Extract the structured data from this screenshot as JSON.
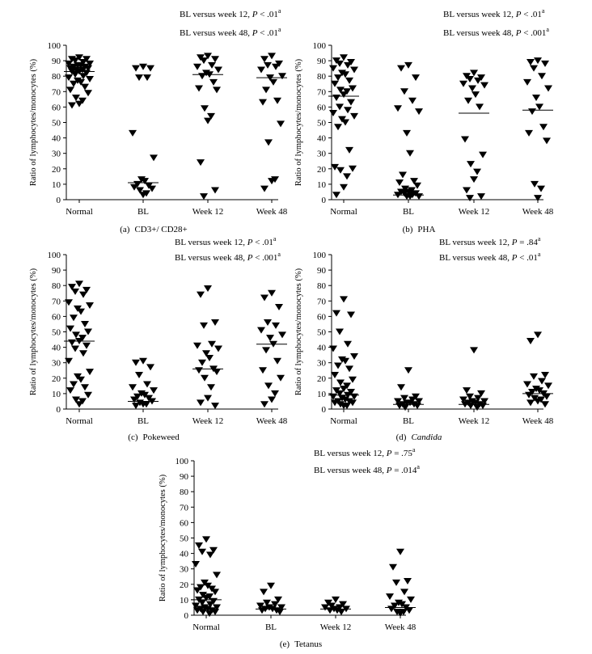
{
  "figure": {
    "y_axis_label": "Ratio of lymphocytes/monocytes (%)"
  },
  "chart_data": [
    {
      "type": "scatter",
      "caption_letter": "(a)",
      "caption_name": "CD3+/ CD28+",
      "categories": [
        "Normal",
        "BL",
        "Week 12",
        "Week 48"
      ],
      "ylim": [
        0,
        100
      ],
      "yticks": [
        0,
        10,
        20,
        30,
        40,
        50,
        60,
        70,
        80,
        90,
        100
      ],
      "annotations": [
        {
          "prefix": "BL versus week 12, ",
          "p": "P",
          "rest": " < .01",
          "sup": "a"
        },
        {
          "prefix": "BL versus week 48, ",
          "p": "P",
          "rest": " < .01",
          "sup": "a"
        }
      ],
      "series": [
        {
          "name": "Normal",
          "median": 83,
          "values": [
            92,
            91,
            91,
            90,
            89,
            88,
            88,
            87,
            87,
            86,
            86,
            85,
            85,
            84,
            84,
            83,
            83,
            82,
            81,
            80,
            79,
            78,
            77,
            76,
            75,
            73,
            71,
            69,
            66,
            64,
            62,
            61
          ]
        },
        {
          "name": "BL",
          "median": 11,
          "values": [
            86,
            85,
            85,
            79,
            79,
            43,
            27,
            13,
            12,
            10,
            9,
            8,
            7,
            6,
            4,
            3
          ]
        },
        {
          "name": "Week 12",
          "median": 81,
          "values": [
            93,
            92,
            91,
            90,
            87,
            86,
            84,
            82,
            81,
            80,
            76,
            72,
            71,
            59,
            54,
            51,
            24,
            6,
            2
          ]
        },
        {
          "name": "Week 48",
          "median": 79,
          "values": [
            93,
            91,
            88,
            87,
            86,
            84,
            80,
            79,
            76,
            71,
            64,
            63,
            49,
            37,
            13,
            12,
            7
          ]
        }
      ]
    },
    {
      "type": "scatter",
      "caption_letter": "(b)",
      "caption_name": "PHA",
      "categories": [
        "Normal",
        "BL",
        "Week 12",
        "Week 48"
      ],
      "ylim": [
        0,
        100
      ],
      "yticks": [
        0,
        10,
        20,
        30,
        40,
        50,
        60,
        70,
        80,
        90,
        100
      ],
      "annotations": [
        {
          "prefix": "BL versus week 12, ",
          "p": "P",
          "rest": " < .01",
          "sup": "a"
        },
        {
          "prefix": "BL versus week 48, ",
          "p": "P",
          "rest": " < .001",
          "sup": "a"
        }
      ],
      "series": [
        {
          "name": "Normal",
          "median": 67,
          "values": [
            92,
            90,
            89,
            88,
            87,
            85,
            84,
            82,
            81,
            79,
            77,
            75,
            72,
            71,
            70,
            68,
            66,
            63,
            60,
            58,
            56,
            54,
            52,
            50,
            47,
            32,
            21,
            20,
            19,
            15,
            8,
            3
          ]
        },
        {
          "name": "BL",
          "median": 3,
          "values": [
            87,
            85,
            79,
            70,
            64,
            59,
            57,
            43,
            30,
            16,
            12,
            11,
            9,
            7,
            6,
            5,
            5,
            4,
            4,
            3,
            3,
            2,
            2,
            2
          ]
        },
        {
          "name": "Week 12",
          "median": 56,
          "values": [
            82,
            80,
            79,
            78,
            77,
            75,
            74,
            72,
            68,
            64,
            60,
            39,
            29,
            23,
            18,
            13,
            6,
            2,
            1
          ]
        },
        {
          "name": "Week 48",
          "median": 58,
          "values": [
            90,
            89,
            88,
            85,
            80,
            76,
            72,
            66,
            60,
            57,
            47,
            43,
            38,
            10,
            7,
            1
          ]
        }
      ]
    },
    {
      "type": "scatter",
      "caption_letter": "(c)",
      "caption_name": "Pokeweed",
      "categories": [
        "Normal",
        "BL",
        "Week 12",
        "Week 48"
      ],
      "ylim": [
        0,
        100
      ],
      "yticks": [
        0,
        10,
        20,
        30,
        40,
        50,
        60,
        70,
        80,
        90,
        100
      ],
      "annotations": [
        {
          "prefix": "BL versus week 12, ",
          "p": "P",
          "rest": " < .01",
          "sup": "a"
        },
        {
          "prefix": "BL versus week 48, ",
          "p": "P",
          "rest": " < .001",
          "sup": "a"
        }
      ],
      "series": [
        {
          "name": "Normal",
          "median": 44,
          "values": [
            81,
            79,
            77,
            76,
            74,
            69,
            67,
            65,
            63,
            59,
            55,
            52,
            50,
            48,
            46,
            44,
            43,
            41,
            39,
            36,
            31,
            24,
            21,
            19,
            16,
            14,
            12,
            9,
            6,
            5,
            3
          ]
        },
        {
          "name": "BL",
          "median": 5,
          "values": [
            31,
            30,
            27,
            22,
            16,
            14,
            12,
            10,
            9,
            8,
            7,
            6,
            5,
            4,
            3,
            3,
            2
          ]
        },
        {
          "name": "Week 12",
          "median": 26,
          "values": [
            78,
            74,
            56,
            54,
            42,
            41,
            39,
            36,
            33,
            30,
            26,
            25,
            24,
            20,
            14,
            7,
            4,
            2
          ]
        },
        {
          "name": "Week 48",
          "median": 42,
          "values": [
            75,
            72,
            66,
            56,
            54,
            51,
            48,
            46,
            42,
            38,
            31,
            25,
            20,
            15,
            10,
            6,
            3
          ]
        }
      ]
    },
    {
      "type": "scatter",
      "caption_letter": "(d)",
      "caption_name": "Candida",
      "caption_italic": true,
      "categories": [
        "Normal",
        "BL",
        "Week 12",
        "Week 48"
      ],
      "ylim": [
        0,
        100
      ],
      "yticks": [
        0,
        10,
        20,
        30,
        40,
        50,
        60,
        70,
        80,
        90,
        100
      ],
      "annotations": [
        {
          "prefix": "BL versus week 12, ",
          "p": "P",
          "rest": " = .84",
          "sup": "a"
        },
        {
          "prefix": "BL versus week 48, ",
          "p": "P",
          "rest": " < .01",
          "sup": "a"
        }
      ],
      "series": [
        {
          "name": "Normal",
          "median": 9,
          "values": [
            71,
            62,
            61,
            50,
            42,
            39,
            34,
            32,
            31,
            28,
            26,
            22,
            19,
            17,
            15,
            13,
            12,
            11,
            10,
            9,
            8,
            8,
            7,
            6,
            5,
            5,
            4,
            4,
            3,
            2,
            2
          ]
        },
        {
          "name": "BL",
          "median": 3,
          "values": [
            25,
            14,
            8,
            7,
            6,
            5,
            5,
            4,
            4,
            3,
            3,
            2,
            2,
            1
          ]
        },
        {
          "name": "Week 12",
          "median": 3,
          "values": [
            38,
            12,
            10,
            8,
            7,
            6,
            5,
            5,
            4,
            4,
            3,
            3,
            2,
            2,
            1
          ]
        },
        {
          "name": "Week 48",
          "median": 10,
          "values": [
            48,
            44,
            22,
            21,
            18,
            16,
            15,
            13,
            12,
            11,
            10,
            9,
            8,
            7,
            6,
            5,
            4,
            3
          ]
        }
      ]
    },
    {
      "type": "scatter",
      "caption_letter": "(e)",
      "caption_name": "Tetanus",
      "categories": [
        "Normal",
        "BL",
        "Week 12",
        "Week 48"
      ],
      "ylim": [
        0,
        100
      ],
      "yticks": [
        0,
        10,
        20,
        30,
        40,
        50,
        60,
        70,
        80,
        90,
        100
      ],
      "annotations": [
        {
          "prefix": "BL versus week 12, ",
          "p": "P",
          "rest": " = .75",
          "sup": "a"
        },
        {
          "prefix": "BL versus week 48, ",
          "p": "P",
          "rest": " = .014",
          "sup": "a"
        }
      ],
      "series": [
        {
          "name": "Normal",
          "median": 10,
          "values": [
            49,
            45,
            42,
            41,
            39,
            33,
            26,
            21,
            19,
            18,
            17,
            16,
            15,
            13,
            12,
            11,
            10,
            9,
            8,
            7,
            6,
            5,
            5,
            4,
            4,
            3,
            3,
            2,
            2,
            1
          ]
        },
        {
          "name": "BL",
          "median": 4,
          "values": [
            19,
            15,
            10,
            8,
            7,
            6,
            5,
            5,
            4,
            4,
            3,
            3,
            2
          ]
        },
        {
          "name": "Week 12",
          "median": 4,
          "values": [
            10,
            8,
            7,
            6,
            5,
            5,
            4,
            4,
            3,
            3,
            2
          ]
        },
        {
          "name": "Week 48",
          "median": 5,
          "values": [
            41,
            31,
            22,
            21,
            15,
            12,
            10,
            8,
            7,
            6,
            5,
            4,
            3,
            2,
            2,
            1
          ]
        }
      ]
    }
  ]
}
